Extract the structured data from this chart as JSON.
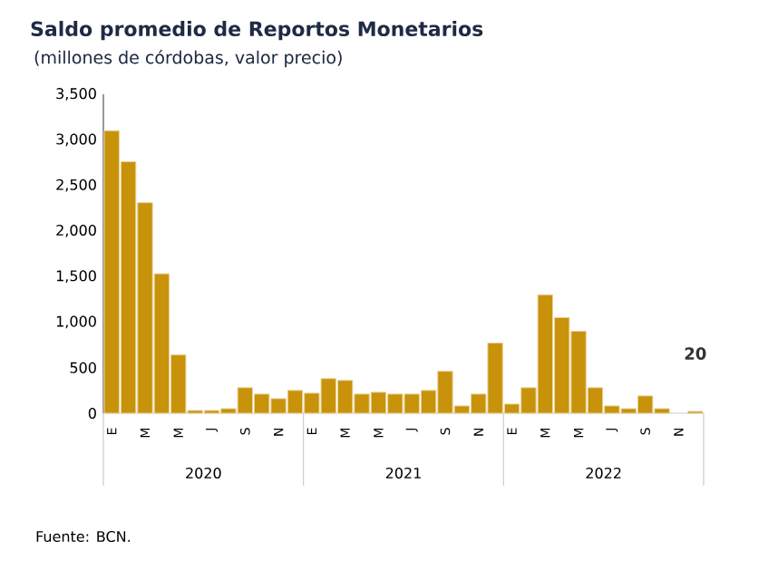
{
  "chart_data": {
    "type": "bar",
    "title": "Saldo promedio de Reportos Monetarios",
    "subtitle": "(millones de córdobas, valor precio)",
    "categories": [
      "E",
      null,
      "M",
      null,
      "M",
      null,
      "J",
      null,
      "S",
      null,
      "N",
      null,
      "E",
      null,
      "M",
      null,
      "M",
      null,
      "J",
      null,
      "S",
      null,
      "N",
      null,
      "E",
      null,
      "M",
      null,
      "M",
      null,
      "J",
      null,
      "S",
      null,
      "N",
      null
    ],
    "series": [
      {
        "color": "#c8920a",
        "values": [
          3100,
          2760,
          2310,
          1530,
          640,
          30,
          30,
          50,
          280,
          210,
          160,
          250,
          220,
          380,
          360,
          210,
          230,
          210,
          210,
          250,
          460,
          80,
          210,
          770,
          100,
          280,
          1300,
          1050,
          900,
          280,
          80,
          50,
          190,
          50,
          null,
          20
        ]
      }
    ],
    "value_labels": [
      null,
      null,
      null,
      null,
      null,
      null,
      null,
      null,
      null,
      null,
      null,
      null,
      null,
      null,
      null,
      null,
      null,
      null,
      null,
      null,
      null,
      null,
      null,
      null,
      null,
      null,
      null,
      null,
      null,
      null,
      null,
      null,
      null,
      null,
      null,
      "20"
    ],
    "ylim": [
      0,
      3500
    ],
    "yticks": [
      0,
      {
        "value": 500,
        "label": "500"
      },
      {
        "value": 1000,
        "label": "1,000"
      },
      {
        "value": 1500,
        "label": "1,500"
      },
      {
        "value": 2000,
        "label": "2,000"
      },
      {
        "value": 2500,
        "label": "2,500"
      },
      {
        "value": 3000,
        "label": "3,000"
      },
      {
        "value": 3500,
        "label": "3,500"
      }
    ],
    "grid": false,
    "annotations": [
      "2020",
      "2021",
      "2022",
      "Fuente: BCN."
    ]
  }
}
